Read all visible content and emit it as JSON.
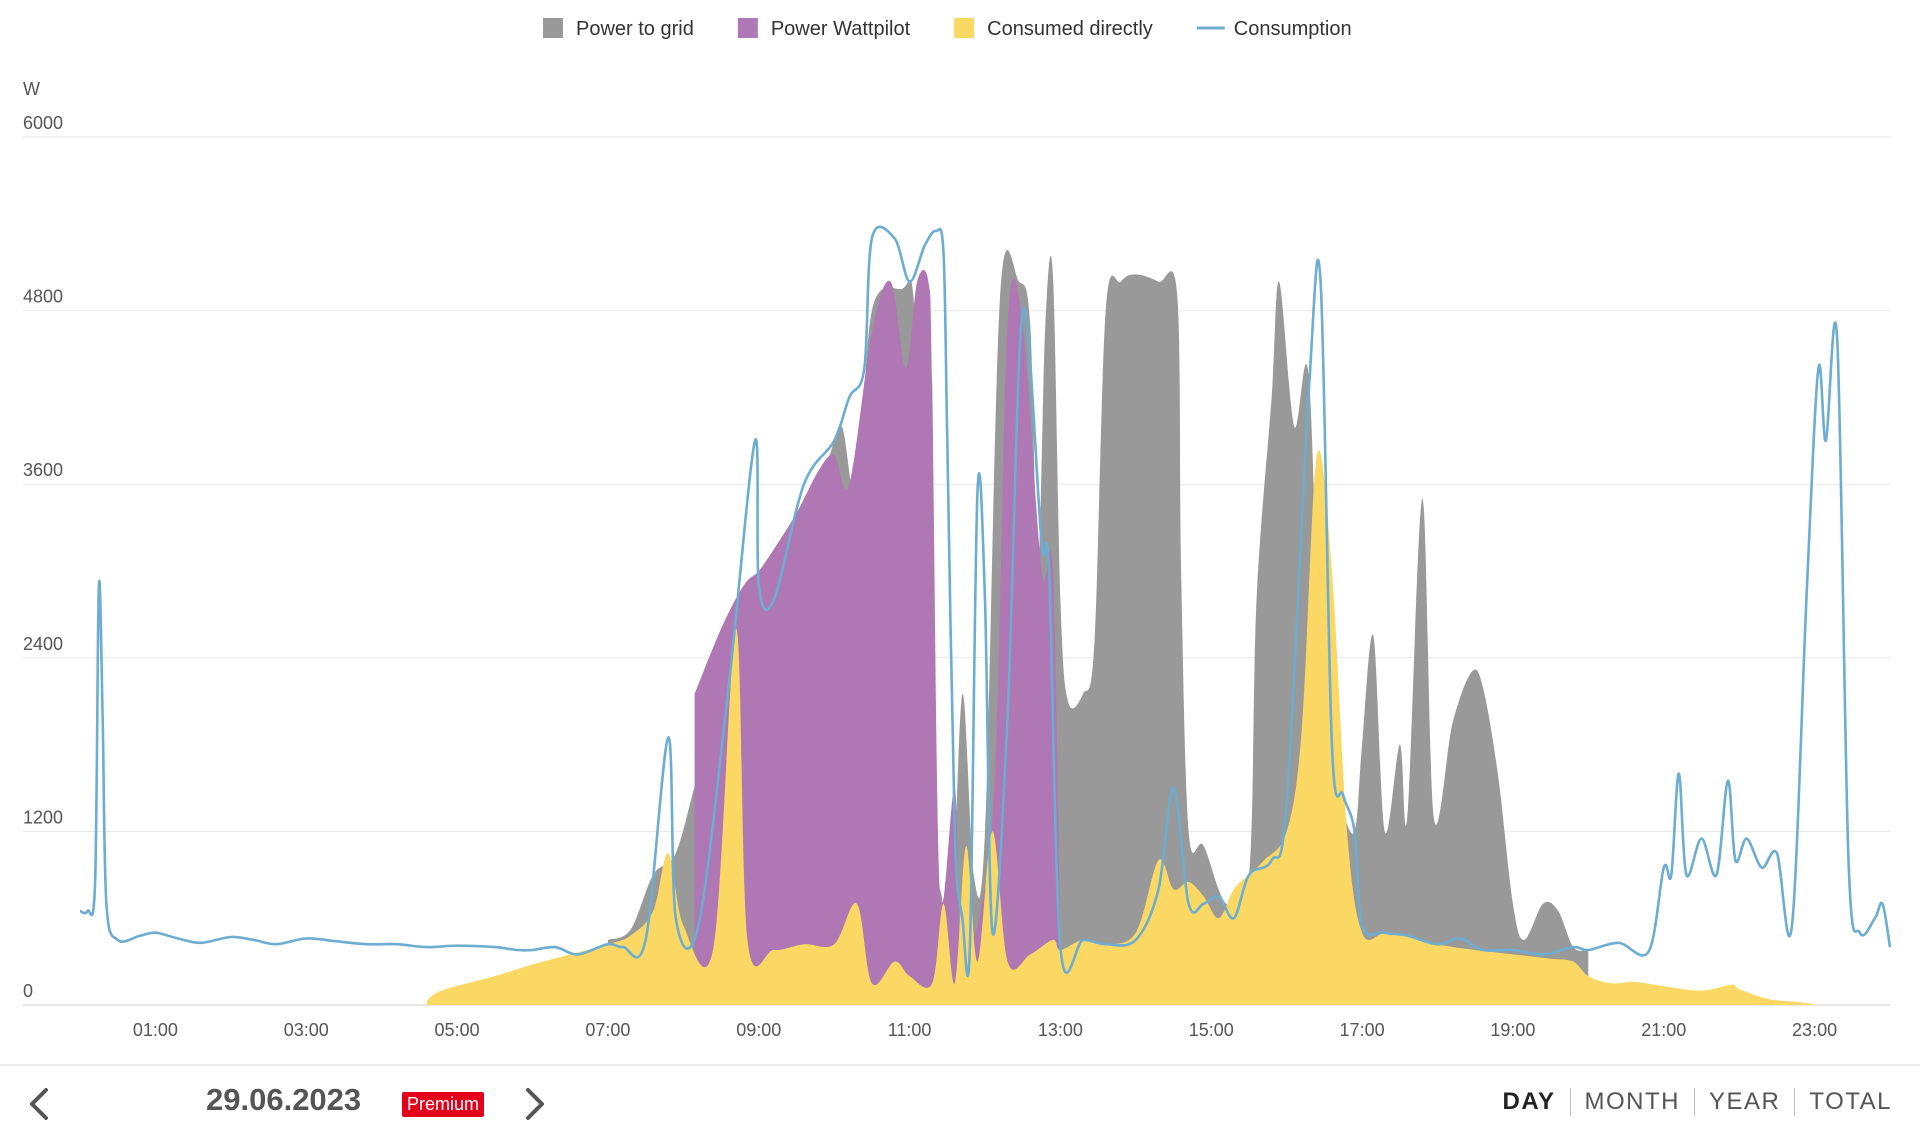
{
  "legend": [
    {
      "label": "Power to grid",
      "color": "#999999",
      "kind": "area"
    },
    {
      "label": "Power Wattpilot",
      "color": "#af77b3",
      "kind": "area"
    },
    {
      "label": "Consumed directly",
      "color": "#fad863",
      "kind": "area"
    },
    {
      "label": "Consumption",
      "color": "#6cadd1",
      "kind": "line"
    }
  ],
  "chart_data": {
    "type": "area",
    "ylabel": "W",
    "ylim": [
      0,
      6000
    ],
    "yticks": [
      0,
      1200,
      2400,
      3600,
      4800,
      6000
    ],
    "xlim": [
      0,
      24
    ],
    "xticks": [
      {
        "v": 1,
        "label": "01:00"
      },
      {
        "v": 3,
        "label": "03:00"
      },
      {
        "v": 5,
        "label": "05:00"
      },
      {
        "v": 7,
        "label": "07:00"
      },
      {
        "v": 9,
        "label": "09:00"
      },
      {
        "v": 11,
        "label": "11:00"
      },
      {
        "v": 13,
        "label": "13:00"
      },
      {
        "v": 15,
        "label": "15:00"
      },
      {
        "v": 17,
        "label": "17:00"
      },
      {
        "v": 19,
        "label": "19:00"
      },
      {
        "v": 21,
        "label": "21:00"
      },
      {
        "v": 23,
        "label": "23:00"
      }
    ],
    "grid": true,
    "legend_position": "top-center",
    "series": [
      {
        "name": "Power to grid",
        "color": "#999999",
        "kind": "area",
        "points": [
          [
            7.0,
            450
          ],
          [
            7.3,
            520
          ],
          [
            7.6,
            900
          ],
          [
            7.9,
            1050
          ],
          [
            8.2,
            1600
          ],
          [
            8.5,
            2000
          ],
          [
            8.8,
            2700
          ],
          [
            9.1,
            3000
          ],
          [
            9.5,
            3400
          ],
          [
            9.9,
            3750
          ],
          [
            10.1,
            4000
          ],
          [
            10.3,
            3500
          ],
          [
            10.5,
            4800
          ],
          [
            10.9,
            4950
          ],
          [
            11.05,
            4900
          ],
          [
            11.1,
            3700
          ],
          [
            11.2,
            750
          ],
          [
            11.4,
            800
          ],
          [
            11.55,
            500
          ],
          [
            11.7,
            2150
          ],
          [
            11.85,
            900
          ],
          [
            12.0,
            1200
          ],
          [
            12.2,
            4900
          ],
          [
            12.45,
            5000
          ],
          [
            12.6,
            4700
          ],
          [
            12.7,
            3000
          ],
          [
            12.8,
            4700
          ],
          [
            12.9,
            5050
          ],
          [
            13.0,
            2800
          ],
          [
            13.1,
            2100
          ],
          [
            13.3,
            2150
          ],
          [
            13.45,
            2500
          ],
          [
            13.6,
            4800
          ],
          [
            13.8,
            5000
          ],
          [
            14.0,
            5050
          ],
          [
            14.3,
            5000
          ],
          [
            14.55,
            4900
          ],
          [
            14.6,
            3000
          ],
          [
            14.7,
            1200
          ],
          [
            14.9,
            1100
          ],
          [
            15.2,
            700
          ],
          [
            15.5,
            900
          ],
          [
            15.6,
            2800
          ],
          [
            15.8,
            4200
          ],
          [
            15.9,
            5000
          ],
          [
            16.1,
            4000
          ],
          [
            16.3,
            4300
          ],
          [
            16.5,
            1300
          ],
          [
            16.7,
            1350
          ],
          [
            16.9,
            1200
          ],
          [
            17.0,
            1800
          ],
          [
            17.15,
            2550
          ],
          [
            17.3,
            1200
          ],
          [
            17.5,
            1800
          ],
          [
            17.6,
            1300
          ],
          [
            17.8,
            3500
          ],
          [
            17.95,
            1300
          ],
          [
            18.2,
            1950
          ],
          [
            18.45,
            2300
          ],
          [
            18.6,
            2200
          ],
          [
            18.8,
            1600
          ],
          [
            19.0,
            700
          ],
          [
            19.15,
            450
          ],
          [
            19.4,
            700
          ],
          [
            19.6,
            650
          ],
          [
            19.8,
            400
          ],
          [
            20.0,
            380
          ]
        ]
      },
      {
        "name": "Power Wattpilot",
        "color": "#af77b3",
        "kind": "area",
        "points": [
          [
            8.15,
            2150
          ],
          [
            8.5,
            2600
          ],
          [
            8.8,
            2900
          ],
          [
            9.0,
            3000
          ],
          [
            9.2,
            3150
          ],
          [
            9.5,
            3400
          ],
          [
            9.8,
            3700
          ],
          [
            10.0,
            3800
          ],
          [
            10.2,
            3600
          ],
          [
            10.5,
            4650
          ],
          [
            10.75,
            5000
          ],
          [
            10.95,
            4400
          ],
          [
            11.1,
            5000
          ],
          [
            11.25,
            5000
          ],
          [
            11.3,
            4300
          ],
          [
            11.4,
            800
          ],
          [
            11.6,
            1500
          ],
          [
            11.7,
            350
          ],
          [
            12.1,
            1300
          ],
          [
            12.3,
            4700
          ],
          [
            12.5,
            4700
          ],
          [
            12.75,
            3000
          ],
          [
            12.9,
            3000
          ],
          [
            13.0,
            400
          ]
        ]
      },
      {
        "name": "Consumed directly",
        "color": "#fad863",
        "kind": "area",
        "points": [
          [
            4.6,
            30
          ],
          [
            4.8,
            100
          ],
          [
            5.5,
            200
          ],
          [
            6.0,
            280
          ],
          [
            6.5,
            350
          ],
          [
            7.0,
            420
          ],
          [
            7.3,
            480
          ],
          [
            7.6,
            650
          ],
          [
            7.8,
            1050
          ],
          [
            8.0,
            550
          ],
          [
            8.4,
            400
          ],
          [
            8.7,
            2600
          ],
          [
            8.85,
            450
          ],
          [
            9.2,
            380
          ],
          [
            9.6,
            420
          ],
          [
            10.0,
            420
          ],
          [
            10.3,
            700
          ],
          [
            10.5,
            150
          ],
          [
            10.8,
            300
          ],
          [
            11.0,
            200
          ],
          [
            11.3,
            150
          ],
          [
            11.45,
            700
          ],
          [
            11.6,
            150
          ],
          [
            11.75,
            1100
          ],
          [
            11.9,
            300
          ],
          [
            12.1,
            1200
          ],
          [
            12.3,
            300
          ],
          [
            12.6,
            350
          ],
          [
            12.9,
            450
          ],
          [
            13.0,
            380
          ],
          [
            13.3,
            450
          ],
          [
            13.6,
            420
          ],
          [
            14.0,
            500
          ],
          [
            14.3,
            1000
          ],
          [
            14.5,
            800
          ],
          [
            14.7,
            850
          ],
          [
            14.9,
            750
          ],
          [
            15.1,
            600
          ],
          [
            15.3,
            800
          ],
          [
            15.5,
            900
          ],
          [
            15.7,
            1000
          ],
          [
            16.0,
            1200
          ],
          [
            16.2,
            1900
          ],
          [
            16.4,
            3800
          ],
          [
            16.6,
            3000
          ],
          [
            16.8,
            1200
          ],
          [
            17.0,
            500
          ],
          [
            17.3,
            500
          ],
          [
            17.6,
            480
          ],
          [
            18.0,
            420
          ],
          [
            18.5,
            380
          ],
          [
            19.0,
            350
          ],
          [
            19.5,
            320
          ],
          [
            19.8,
            300
          ],
          [
            20.0,
            200
          ],
          [
            20.3,
            150
          ],
          [
            20.6,
            160
          ],
          [
            21.0,
            130
          ],
          [
            21.5,
            100
          ],
          [
            21.9,
            140
          ],
          [
            22.0,
            110
          ],
          [
            22.4,
            40
          ],
          [
            22.8,
            20
          ],
          [
            23.0,
            5
          ]
        ]
      },
      {
        "name": "Consumption",
        "color": "#6cadd1",
        "kind": "line",
        "points": [
          [
            0.0,
            650
          ],
          [
            0.1,
            650
          ],
          [
            0.2,
            850
          ],
          [
            0.25,
            2900
          ],
          [
            0.3,
            2000
          ],
          [
            0.35,
            700
          ],
          [
            0.5,
            450
          ],
          [
            0.8,
            480
          ],
          [
            1.0,
            500
          ],
          [
            1.3,
            460
          ],
          [
            1.6,
            430
          ],
          [
            2.0,
            470
          ],
          [
            2.3,
            450
          ],
          [
            2.6,
            420
          ],
          [
            3.0,
            460
          ],
          [
            3.4,
            440
          ],
          [
            3.8,
            420
          ],
          [
            4.2,
            420
          ],
          [
            4.6,
            400
          ],
          [
            5.0,
            410
          ],
          [
            5.5,
            400
          ],
          [
            5.8,
            380
          ],
          [
            6.0,
            380
          ],
          [
            6.3,
            400
          ],
          [
            6.6,
            350
          ],
          [
            7.0,
            420
          ],
          [
            7.2,
            400
          ],
          [
            7.5,
            450
          ],
          [
            7.8,
            1850
          ],
          [
            7.9,
            600
          ],
          [
            8.2,
            550
          ],
          [
            8.6,
            2200
          ],
          [
            8.95,
            3900
          ],
          [
            9.0,
            2900
          ],
          [
            9.2,
            2800
          ],
          [
            9.6,
            3600
          ],
          [
            10.0,
            3900
          ],
          [
            10.2,
            4200
          ],
          [
            10.4,
            4400
          ],
          [
            10.5,
            5300
          ],
          [
            10.8,
            5300
          ],
          [
            11.0,
            5000
          ],
          [
            11.2,
            5250
          ],
          [
            11.35,
            5350
          ],
          [
            11.45,
            5200
          ],
          [
            11.5,
            3900
          ],
          [
            11.6,
            1200
          ],
          [
            11.7,
            600
          ],
          [
            11.8,
            400
          ],
          [
            11.9,
            3550
          ],
          [
            12.0,
            2800
          ],
          [
            12.1,
            500
          ],
          [
            12.3,
            2000
          ],
          [
            12.5,
            4800
          ],
          [
            12.75,
            3200
          ],
          [
            12.85,
            3000
          ],
          [
            13.0,
            400
          ],
          [
            13.3,
            450
          ],
          [
            13.6,
            420
          ],
          [
            14.0,
            450
          ],
          [
            14.3,
            800
          ],
          [
            14.5,
            1500
          ],
          [
            14.7,
            700
          ],
          [
            14.9,
            700
          ],
          [
            15.1,
            750
          ],
          [
            15.3,
            600
          ],
          [
            15.5,
            900
          ],
          [
            15.8,
            1000
          ],
          [
            16.0,
            1400
          ],
          [
            16.3,
            4300
          ],
          [
            16.45,
            5000
          ],
          [
            16.6,
            1800
          ],
          [
            16.75,
            1450
          ],
          [
            16.9,
            1200
          ],
          [
            17.0,
            550
          ],
          [
            17.3,
            500
          ],
          [
            17.6,
            480
          ],
          [
            18.0,
            420
          ],
          [
            18.3,
            460
          ],
          [
            18.6,
            380
          ],
          [
            19.0,
            380
          ],
          [
            19.4,
            350
          ],
          [
            19.8,
            400
          ],
          [
            20.0,
            380
          ],
          [
            20.4,
            430
          ],
          [
            20.8,
            370
          ],
          [
            21.0,
            950
          ],
          [
            21.1,
            900
          ],
          [
            21.2,
            1600
          ],
          [
            21.3,
            900
          ],
          [
            21.5,
            1150
          ],
          [
            21.7,
            900
          ],
          [
            21.85,
            1550
          ],
          [
            21.95,
            1000
          ],
          [
            22.1,
            1150
          ],
          [
            22.3,
            950
          ],
          [
            22.5,
            1050
          ],
          [
            22.7,
            550
          ],
          [
            22.9,
            2900
          ],
          [
            23.05,
            4400
          ],
          [
            23.15,
            3900
          ],
          [
            23.3,
            4600
          ],
          [
            23.45,
            1000
          ],
          [
            23.6,
            500
          ],
          [
            23.8,
            600
          ],
          [
            23.9,
            700
          ],
          [
            24.0,
            400
          ]
        ]
      }
    ]
  },
  "footer": {
    "date": "29.06.2023",
    "badge": "Premium",
    "periods": [
      "DAY",
      "MONTH",
      "YEAR",
      "TOTAL"
    ],
    "active_period": "DAY"
  }
}
